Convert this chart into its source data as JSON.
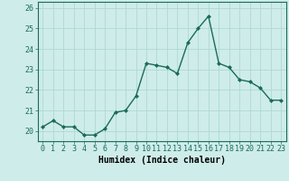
{
  "x": [
    0,
    1,
    2,
    3,
    4,
    5,
    6,
    7,
    8,
    9,
    10,
    11,
    12,
    13,
    14,
    15,
    16,
    17,
    18,
    19,
    20,
    21,
    22,
    23
  ],
  "y": [
    20.2,
    20.5,
    20.2,
    20.2,
    19.8,
    19.8,
    20.1,
    20.9,
    21.0,
    21.7,
    23.3,
    23.2,
    23.1,
    22.8,
    24.3,
    25.0,
    25.6,
    23.3,
    23.1,
    22.5,
    22.4,
    22.1,
    21.5,
    21.5
  ],
  "line_color": "#1a6b5a",
  "marker": "D",
  "marker_size": 2.0,
  "linewidth": 1.0,
  "bg_color": "#ceecea",
  "grid_color": "#aed8d4",
  "xlabel": "Humidex (Indice chaleur)",
  "xlabel_fontsize": 7,
  "tick_fontsize": 6,
  "ylim": [
    19.5,
    26.3
  ],
  "yticks": [
    20,
    21,
    22,
    23,
    24,
    25,
    26
  ],
  "xticks": [
    0,
    1,
    2,
    3,
    4,
    5,
    6,
    7,
    8,
    9,
    10,
    11,
    12,
    13,
    14,
    15,
    16,
    17,
    18,
    19,
    20,
    21,
    22,
    23
  ],
  "xlim": [
    -0.5,
    23.5
  ],
  "spine_color": "#1a6b5a"
}
